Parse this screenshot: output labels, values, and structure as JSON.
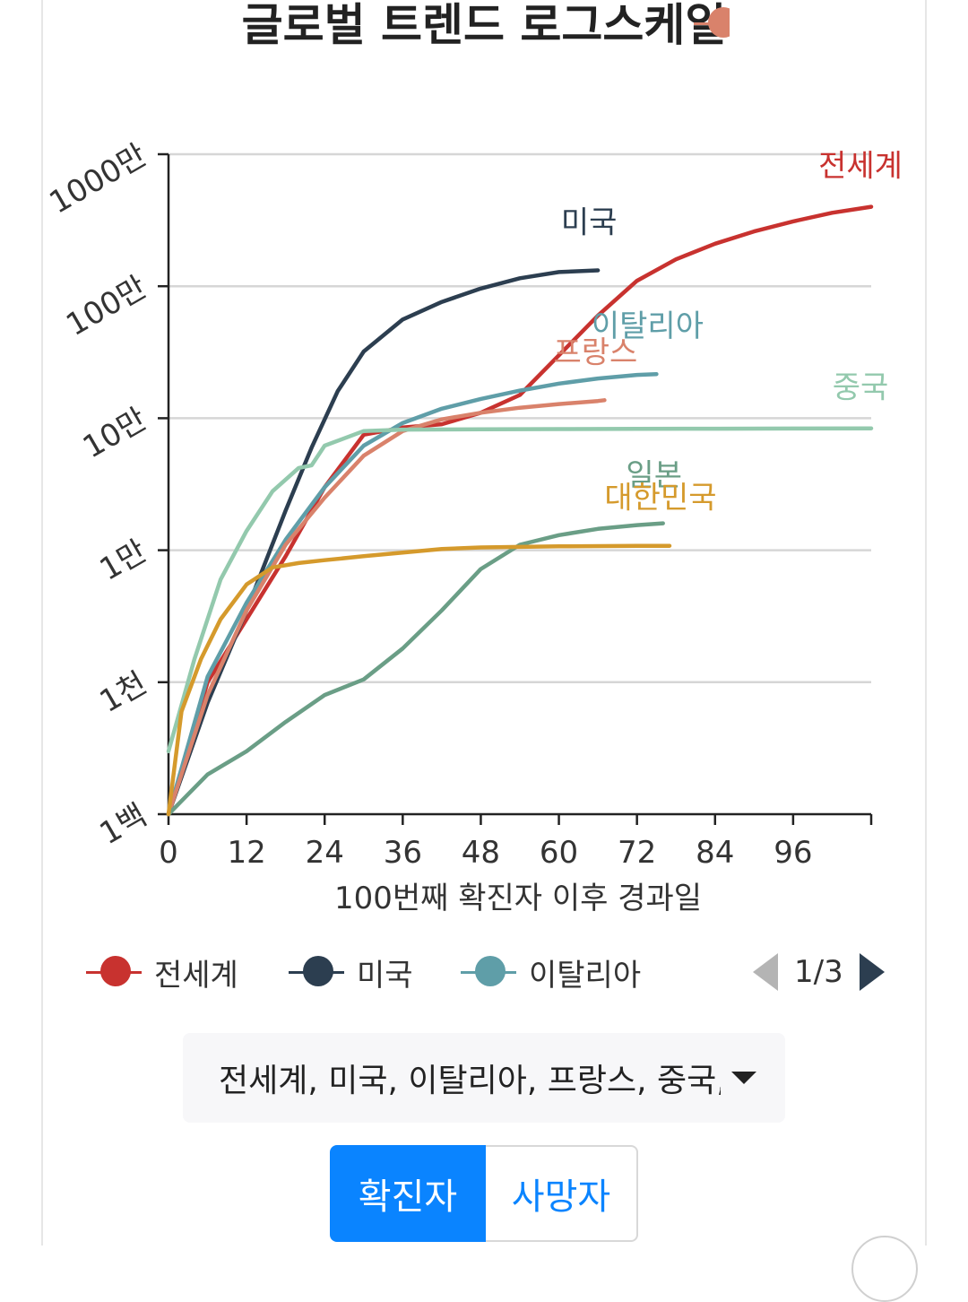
{
  "title": "글로벌 트렌드 로그스케일",
  "chart_data": {
    "type": "line",
    "title": "글로벌 트렌드 로그스케일",
    "xlabel": "100번째 확진자 이후 경과일",
    "ylabel": "",
    "yscale": "log",
    "xlim": [
      0,
      108
    ],
    "ylim": [
      100,
      10000000
    ],
    "x_ticks": [
      0,
      12,
      24,
      36,
      48,
      60,
      72,
      84,
      96
    ],
    "y_ticks": [
      {
        "value": 100,
        "label": "1백"
      },
      {
        "value": 1000,
        "label": "1천"
      },
      {
        "value": 10000,
        "label": "1만"
      },
      {
        "value": 100000,
        "label": "10만"
      },
      {
        "value": 1000000,
        "label": "100만"
      },
      {
        "value": 10000000,
        "label": "1000만"
      }
    ],
    "series": [
      {
        "name": "전세계",
        "color": "#c8322f",
        "x": [
          0,
          6,
          12,
          18,
          24,
          30,
          36,
          42,
          48,
          54,
          60,
          66,
          72,
          78,
          84,
          90,
          96,
          102,
          108
        ],
        "y": [
          100,
          1000,
          3000,
          9000,
          30000,
          75000,
          85000,
          90000,
          110000,
          150000,
          300000,
          600000,
          1100000,
          1600000,
          2100000,
          2600000,
          3100000,
          3600000,
          4000000
        ]
      },
      {
        "name": "미국",
        "color": "#2c3e50",
        "x": [
          0,
          6,
          12,
          18,
          22,
          26,
          30,
          36,
          42,
          48,
          54,
          60,
          66
        ],
        "y": [
          100,
          700,
          3500,
          20000,
          60000,
          160000,
          320000,
          560000,
          760000,
          960000,
          1150000,
          1280000,
          1320000
        ]
      },
      {
        "name": "이탈리아",
        "color": "#5f9ea8",
        "x": [
          0,
          6,
          12,
          18,
          24,
          30,
          36,
          42,
          48,
          54,
          60,
          66,
          72,
          75
        ],
        "y": [
          100,
          1100,
          4000,
          12000,
          30000,
          62000,
          92000,
          118000,
          140000,
          162000,
          183000,
          200000,
          213000,
          216000
        ]
      },
      {
        "name": "프랑스",
        "color": "#d9826b",
        "x": [
          0,
          6,
          12,
          18,
          24,
          30,
          36,
          42,
          48,
          54,
          60,
          66,
          67
        ],
        "y": [
          100,
          800,
          3500,
          11000,
          25000,
          52000,
          80000,
          98000,
          110000,
          120000,
          128000,
          135000,
          137000
        ]
      },
      {
        "name": "중국",
        "color": "#93c9ad",
        "x": [
          0,
          4,
          8,
          12,
          16,
          20,
          22,
          24,
          30,
          36,
          48,
          60,
          72,
          84,
          96,
          108
        ],
        "y": [
          300,
          1500,
          6000,
          14000,
          28000,
          42000,
          44000,
          62000,
          80000,
          82000,
          82500,
          82800,
          83000,
          83300,
          83600,
          83800
        ]
      },
      {
        "name": "일본",
        "color": "#6a9e86",
        "x": [
          0,
          6,
          12,
          18,
          24,
          30,
          36,
          42,
          48,
          54,
          60,
          66,
          72,
          76
        ],
        "y": [
          100,
          200,
          300,
          500,
          800,
          1050,
          1800,
          3500,
          7200,
          11000,
          13000,
          14500,
          15500,
          16000
        ]
      },
      {
        "name": "대한민국",
        "color": "#d59a2c",
        "x": [
          0,
          2,
          5,
          8,
          12,
          16,
          20,
          24,
          30,
          36,
          42,
          48,
          60,
          72,
          77
        ],
        "y": [
          100,
          600,
          1500,
          3000,
          5500,
          7400,
          8000,
          8400,
          9000,
          9600,
          10200,
          10500,
          10700,
          10800,
          10800
        ]
      }
    ]
  },
  "legend": {
    "items": [
      {
        "label": "전세계",
        "color": "#c8322f"
      },
      {
        "label": "미국",
        "color": "#2c3e50"
      },
      {
        "label": "이탈리아",
        "color": "#5f9ea8"
      }
    ],
    "partial_color": "#d9826b",
    "page": "1/3"
  },
  "selector": {
    "text": "전세계, 미국, 이탈리아, 프랑스, 중국, 일본, 대한민국"
  },
  "toggle": {
    "confirmed": "확진자",
    "deaths": "사망자"
  }
}
